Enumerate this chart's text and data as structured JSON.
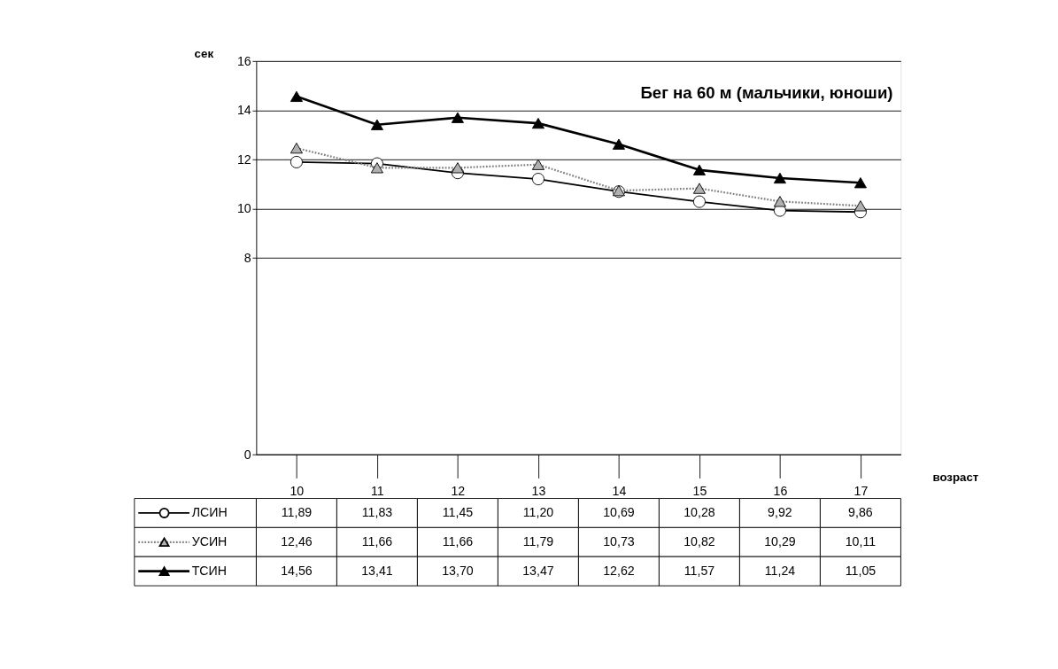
{
  "chart_data": {
    "type": "line",
    "title": "Бег на 60 м (мальчики, юноши)",
    "ylabel": "сек",
    "xlabel": "возраст",
    "categories": [
      "10",
      "11",
      "12",
      "13",
      "14",
      "15",
      "16",
      "17"
    ],
    "series": [
      {
        "name": "ЛСИН",
        "color": "#000000",
        "marker": "circle",
        "line_style": "solid",
        "values": [
          11.89,
          11.83,
          11.45,
          11.2,
          10.69,
          10.28,
          9.92,
          9.86
        ],
        "value_labels": [
          "11,89",
          "11,83",
          "11,45",
          "11,20",
          "10,69",
          "10,28",
          "9,92",
          "9,86"
        ]
      },
      {
        "name": "УСИН",
        "color": "#808080",
        "marker": "triangle",
        "line_style": "dotted",
        "values": [
          12.46,
          11.66,
          11.66,
          11.79,
          10.73,
          10.82,
          10.29,
          10.11
        ],
        "value_labels": [
          "12,46",
          "11,66",
          "11,66",
          "11,79",
          "10,73",
          "10,82",
          "10,29",
          "10,11"
        ]
      },
      {
        "name": "ТСИН",
        "color": "#000000",
        "marker": "triangle",
        "line_style": "solid",
        "values": [
          14.56,
          13.41,
          13.7,
          13.47,
          12.62,
          11.57,
          11.24,
          11.05
        ],
        "value_labels": [
          "14,56",
          "13,41",
          "13,70",
          "13,47",
          "12,62",
          "11,57",
          "11,24",
          "11,05"
        ]
      }
    ],
    "ylim": [
      0,
      16
    ],
    "yticks": [
      0,
      8,
      10,
      12,
      14,
      16
    ],
    "grid": "y",
    "legend": "bottom left"
  }
}
